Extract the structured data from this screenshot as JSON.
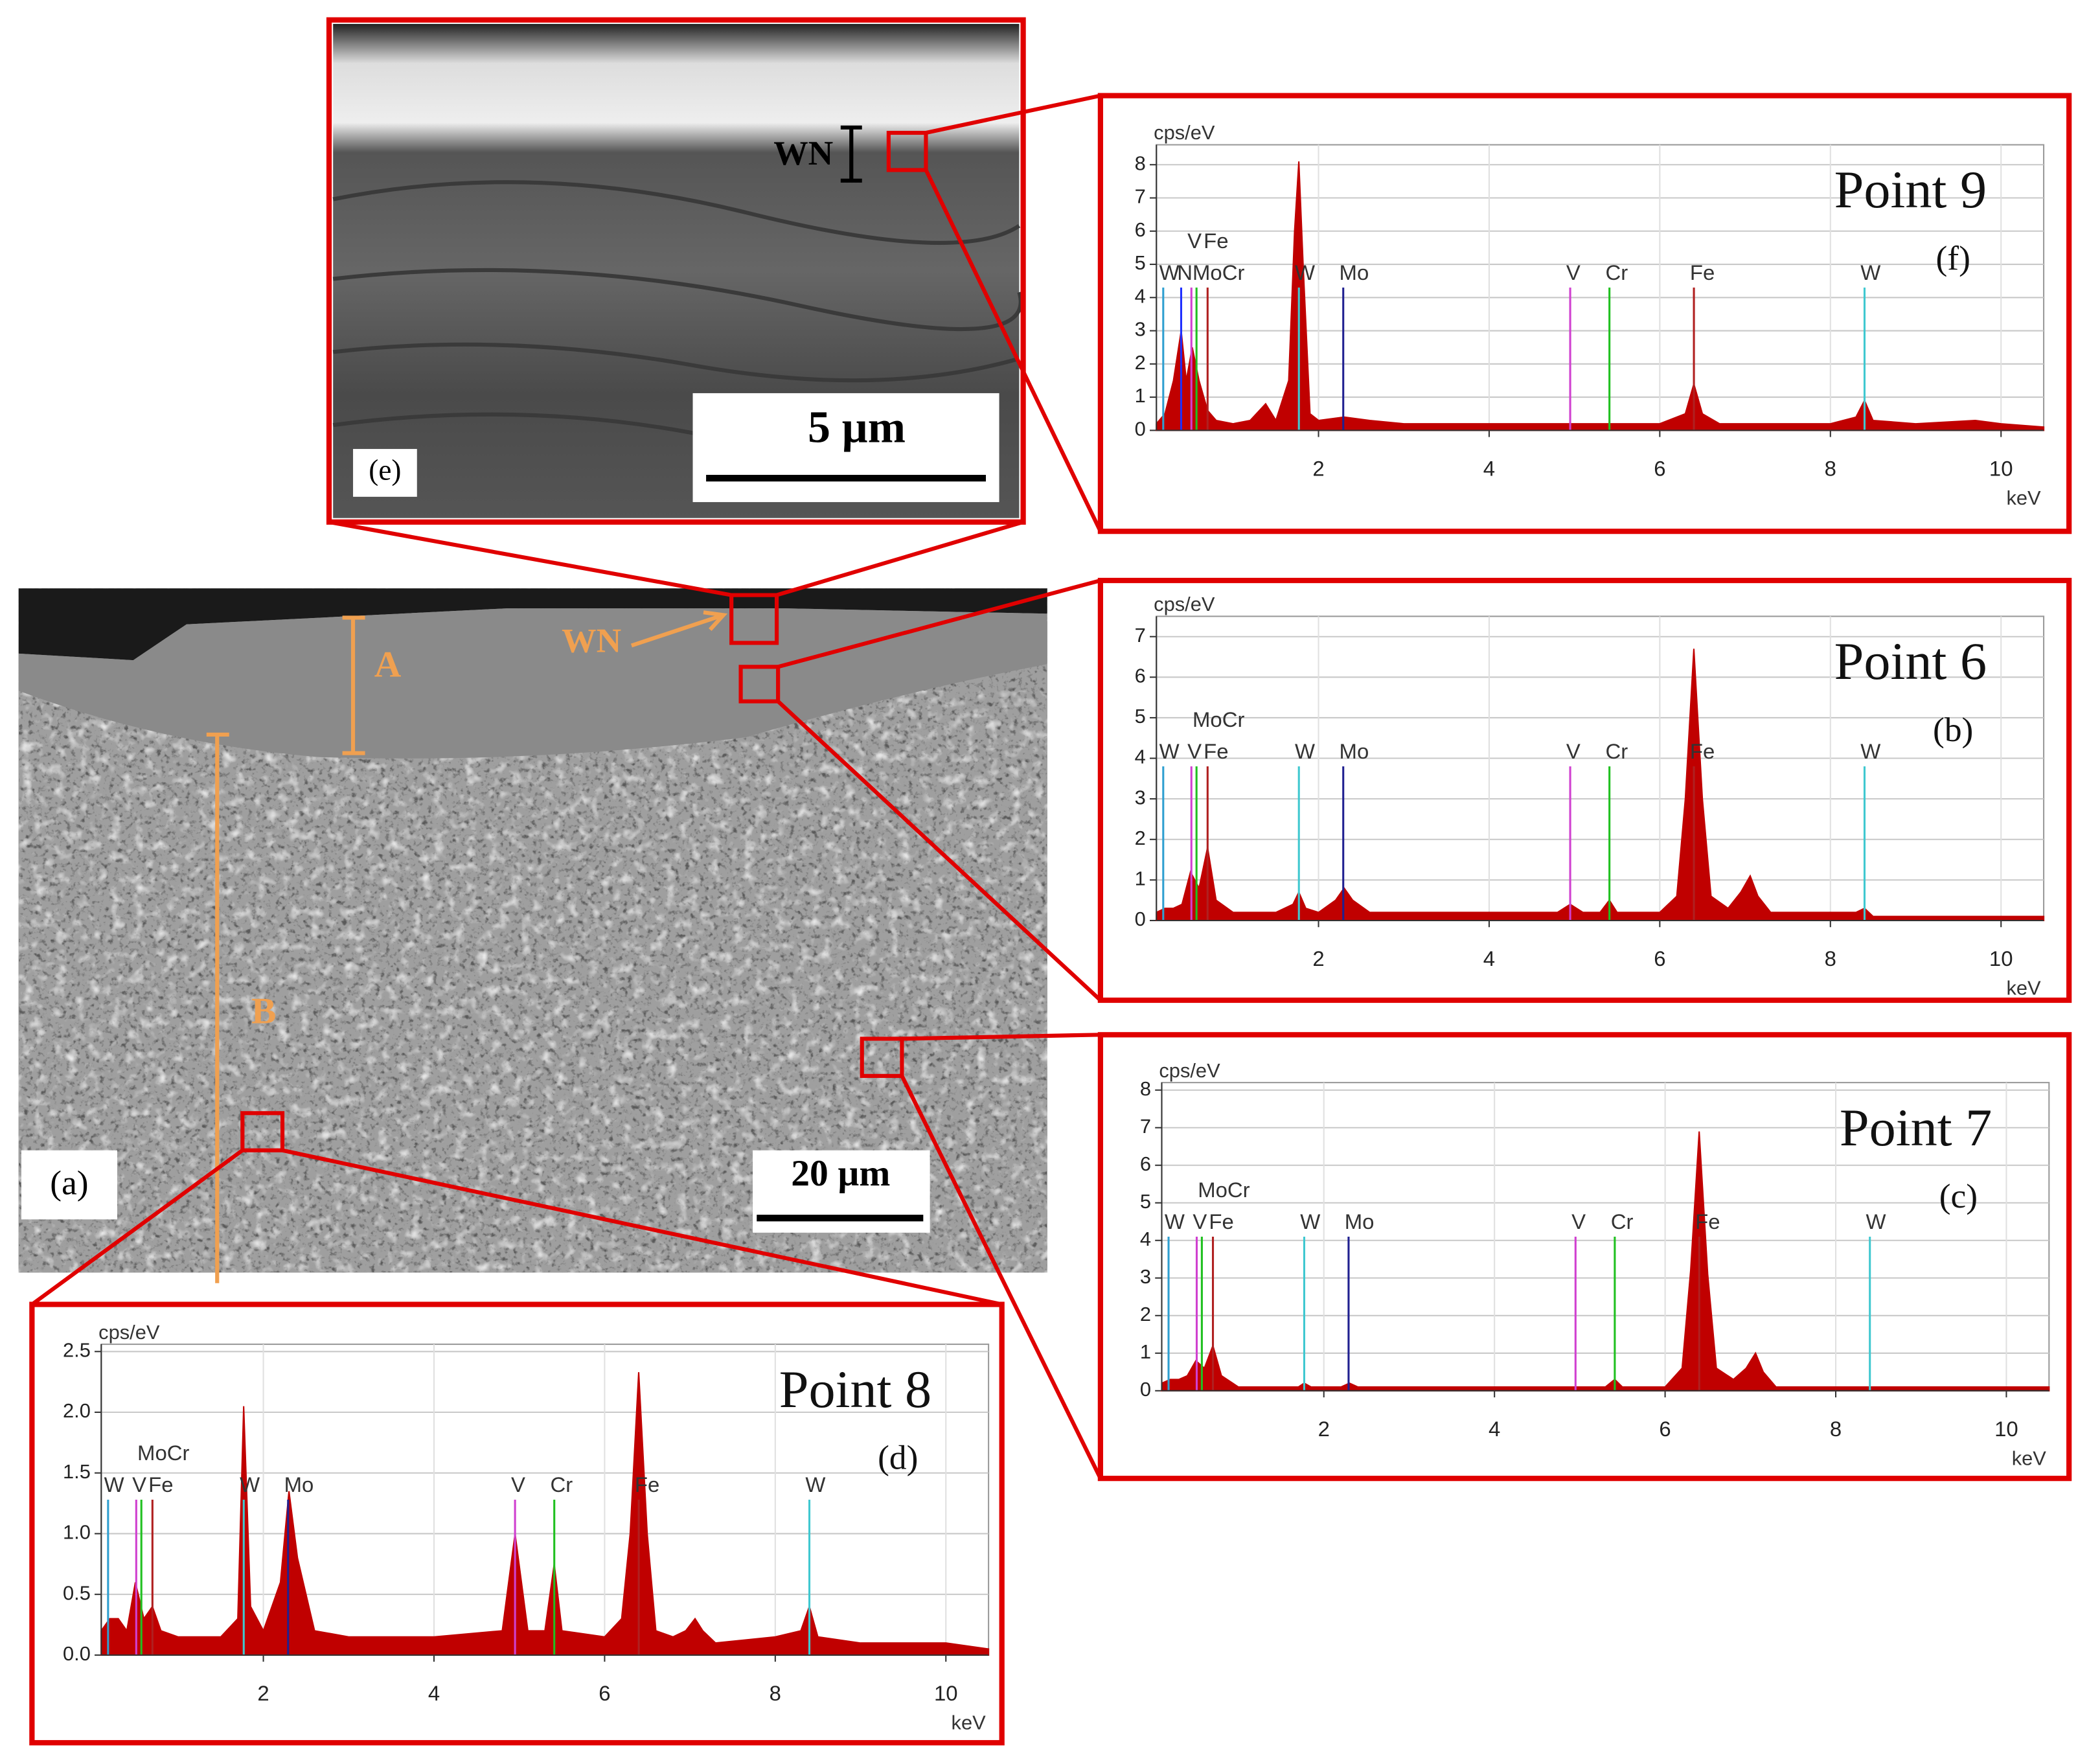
{
  "chart_data": [
    {
      "type": "area",
      "title": "Point 9",
      "panel": "(f)",
      "y_label": "cps/eV",
      "x_label": "keV",
      "color": "#c00000",
      "x": [
        0.1,
        0.2,
        0.3,
        0.39,
        0.45,
        0.52,
        0.6,
        0.7,
        0.8,
        1.0,
        1.2,
        1.38,
        1.5,
        1.65,
        1.72,
        1.77,
        1.82,
        1.9,
        2.0,
        2.3,
        2.6,
        3,
        4,
        5,
        5.4,
        6,
        6.3,
        6.4,
        6.5,
        6.7,
        7,
        7.5,
        8,
        8.3,
        8.4,
        8.5,
        9,
        9.7,
        10,
        10.5
      ],
      "values": [
        0.2,
        0.5,
        1.5,
        3,
        1.5,
        2.5,
        1.5,
        0.6,
        0.3,
        0.2,
        0.3,
        0.8,
        0.3,
        1.5,
        6,
        8.1,
        5,
        0.5,
        0.3,
        0.4,
        0.3,
        0.2,
        0.2,
        0.2,
        0.2,
        0.2,
        0.5,
        1.4,
        0.5,
        0.2,
        0.2,
        0.2,
        0.2,
        0.4,
        0.9,
        0.3,
        0.2,
        0.3,
        0.2,
        0.1
      ],
      "xlim": [
        0.1,
        10.5
      ],
      "xticks": [
        2,
        4,
        6,
        8,
        10
      ],
      "ylim": [
        0,
        8.6
      ],
      "yticks": [
        0,
        1,
        2,
        3,
        4,
        5,
        6,
        7,
        8
      ],
      "grid": true,
      "element_lines": [
        {
          "label": "W",
          "x": 0.18,
          "height": 4.3,
          "color": "#2f9fd0"
        },
        {
          "label": "N",
          "x": 0.39,
          "height": 4.3,
          "color": "#2030ff"
        },
        {
          "label": "V",
          "x": 0.51,
          "height": 4.3,
          "color": "#d040d0"
        },
        {
          "label": "MoCr",
          "x": 0.57,
          "height": 4.3,
          "color": "#20c020"
        },
        {
          "label": "Fe",
          "x": 0.7,
          "height": 4.3,
          "color": "#b02020"
        },
        {
          "label": "W",
          "x": 1.77,
          "height": 4.3,
          "color": "#40c8d0"
        },
        {
          "label": "Mo",
          "x": 2.29,
          "height": 4.3,
          "color": "#202090"
        },
        {
          "label": "V",
          "x": 4.95,
          "height": 4.3,
          "color": "#d040d0"
        },
        {
          "label": "Cr",
          "x": 5.41,
          "height": 4.3,
          "color": "#20c020"
        },
        {
          "label": "Fe",
          "x": 6.4,
          "height": 4.3,
          "color": "#b02020"
        },
        {
          "label": "W",
          "x": 8.4,
          "height": 4.3,
          "color": "#40c8d0"
        }
      ]
    },
    {
      "type": "area",
      "title": "Point 6",
      "panel": "(b)",
      "y_label": "cps/eV",
      "x_label": "keV",
      "color": "#c00000",
      "x": [
        0.1,
        0.2,
        0.3,
        0.4,
        0.5,
        0.6,
        0.7,
        0.8,
        1.0,
        1.5,
        1.7,
        1.77,
        1.85,
        2.0,
        2.2,
        2.3,
        2.4,
        2.6,
        3,
        4,
        4.8,
        4.95,
        5.1,
        5.3,
        5.41,
        5.5,
        6.0,
        6.2,
        6.3,
        6.4,
        6.5,
        6.6,
        6.8,
        6.95,
        7.06,
        7.15,
        7.3,
        8,
        8.3,
        8.4,
        8.5,
        9,
        10,
        10.5
      ],
      "values": [
        0.2,
        0.3,
        0.3,
        0.4,
        1.2,
        0.8,
        1.8,
        0.5,
        0.2,
        0.2,
        0.4,
        0.7,
        0.3,
        0.2,
        0.5,
        0.8,
        0.5,
        0.2,
        0.2,
        0.2,
        0.2,
        0.4,
        0.2,
        0.2,
        0.5,
        0.2,
        0.2,
        0.6,
        3,
        6.7,
        3,
        0.6,
        0.3,
        0.7,
        1.1,
        0.6,
        0.2,
        0.2,
        0.2,
        0.3,
        0.1,
        0.1,
        0.1,
        0.1
      ],
      "xlim": [
        0.1,
        10.5
      ],
      "xticks": [
        2,
        4,
        6,
        8,
        10
      ],
      "ylim": [
        0,
        7.5
      ],
      "yticks": [
        0,
        1,
        2,
        3,
        4,
        5,
        6,
        7
      ],
      "grid": true,
      "element_lines": [
        {
          "label": "W",
          "x": 0.18,
          "height": 3.8,
          "color": "#2f9fd0"
        },
        {
          "label": "V",
          "x": 0.51,
          "height": 3.8,
          "color": "#d040d0"
        },
        {
          "label": "MoCr",
          "x": 0.57,
          "height": 3.8,
          "color": "#20c020"
        },
        {
          "label": "Fe",
          "x": 0.7,
          "height": 3.8,
          "color": "#b02020"
        },
        {
          "label": "W",
          "x": 1.77,
          "height": 3.8,
          "color": "#40c8d0"
        },
        {
          "label": "Mo",
          "x": 2.29,
          "height": 3.8,
          "color": "#202090"
        },
        {
          "label": "V",
          "x": 4.95,
          "height": 3.8,
          "color": "#d040d0"
        },
        {
          "label": "Cr",
          "x": 5.41,
          "height": 3.8,
          "color": "#20c020"
        },
        {
          "label": "Fe",
          "x": 6.4,
          "height": 3.8,
          "color": "#b02020"
        },
        {
          "label": "W",
          "x": 8.4,
          "height": 3.8,
          "color": "#40c8d0"
        }
      ]
    },
    {
      "type": "area",
      "title": "Point 7",
      "panel": "(c)",
      "y_label": "cps/eV",
      "x_label": "keV",
      "color": "#c00000",
      "x": [
        0.1,
        0.2,
        0.3,
        0.4,
        0.5,
        0.6,
        0.7,
        0.8,
        1.0,
        1.5,
        1.7,
        1.77,
        1.85,
        2.0,
        2.2,
        2.3,
        2.4,
        2.6,
        3,
        4,
        4.8,
        4.95,
        5.1,
        5.3,
        5.41,
        5.5,
        6.0,
        6.2,
        6.3,
        6.4,
        6.5,
        6.6,
        6.8,
        6.95,
        7.06,
        7.15,
        7.3,
        8,
        8.3,
        8.4,
        8.5,
        9,
        10,
        10.5
      ],
      "values": [
        0.2,
        0.3,
        0.3,
        0.4,
        0.8,
        0.6,
        1.2,
        0.4,
        0.1,
        0.1,
        0.1,
        0.2,
        0.1,
        0.1,
        0.1,
        0.2,
        0.1,
        0.1,
        0.1,
        0.1,
        0.1,
        0.1,
        0.1,
        0.1,
        0.3,
        0.1,
        0.1,
        0.6,
        3.2,
        6.9,
        3.1,
        0.6,
        0.3,
        0.6,
        1.0,
        0.5,
        0.1,
        0.1,
        0.1,
        0.1,
        0.1,
        0.1,
        0.1,
        0.1
      ],
      "xlim": [
        0.1,
        10.5
      ],
      "xticks": [
        2,
        4,
        6,
        8,
        10
      ],
      "ylim": [
        0,
        8.2
      ],
      "yticks": [
        0,
        1,
        2,
        3,
        4,
        5,
        6,
        7,
        8
      ],
      "grid": true,
      "element_lines": [
        {
          "label": "W",
          "x": 0.18,
          "height": 4.1,
          "color": "#2f9fd0"
        },
        {
          "label": "V",
          "x": 0.51,
          "height": 4.1,
          "color": "#d040d0"
        },
        {
          "label": "MoCr",
          "x": 0.57,
          "height": 4.1,
          "color": "#20c020"
        },
        {
          "label": "Fe",
          "x": 0.7,
          "height": 4.1,
          "color": "#b02020"
        },
        {
          "label": "W",
          "x": 1.77,
          "height": 4.1,
          "color": "#40c8d0"
        },
        {
          "label": "Mo",
          "x": 2.29,
          "height": 4.1,
          "color": "#202090"
        },
        {
          "label": "V",
          "x": 4.95,
          "height": 4.1,
          "color": "#d040d0"
        },
        {
          "label": "Cr",
          "x": 5.41,
          "height": 4.1,
          "color": "#20c020"
        },
        {
          "label": "Fe",
          "x": 6.4,
          "height": 4.1,
          "color": "#b02020"
        },
        {
          "label": "W",
          "x": 8.4,
          "height": 4.1,
          "color": "#40c8d0"
        }
      ]
    },
    {
      "type": "area",
      "title": "Point 8",
      "panel": "(d)",
      "y_label": "cps/eV",
      "x_label": "keV",
      "color": "#c00000",
      "x": [
        0.1,
        0.2,
        0.3,
        0.4,
        0.5,
        0.6,
        0.7,
        0.8,
        1.0,
        1.5,
        1.7,
        1.77,
        1.85,
        2.0,
        2.2,
        2.3,
        2.4,
        2.6,
        3,
        4,
        4.8,
        4.95,
        5.1,
        5.3,
        5.41,
        5.5,
        6.0,
        6.2,
        6.3,
        6.4,
        6.5,
        6.6,
        6.8,
        6.95,
        7.06,
        7.15,
        7.3,
        8,
        8.3,
        8.4,
        8.5,
        9,
        10,
        10.5
      ],
      "values": [
        0.2,
        0.3,
        0.3,
        0.2,
        0.6,
        0.3,
        0.4,
        0.2,
        0.15,
        0.15,
        0.3,
        2.05,
        0.4,
        0.2,
        0.6,
        1.35,
        0.8,
        0.2,
        0.15,
        0.15,
        0.2,
        1.0,
        0.2,
        0.2,
        0.75,
        0.2,
        0.15,
        0.3,
        1.0,
        2.33,
        1.0,
        0.2,
        0.15,
        0.2,
        0.3,
        0.2,
        0.1,
        0.15,
        0.2,
        0.4,
        0.15,
        0.1,
        0.1,
        0.05
      ],
      "xlim": [
        0.1,
        10.5
      ],
      "xticks": [
        2,
        4,
        6,
        8,
        10
      ],
      "ylim": [
        0,
        2.56
      ],
      "yticks": [
        {
          "value": 0,
          "label": "0.0"
        },
        0.5,
        {
          "value": 1,
          "label": "1.0"
        },
        1.5,
        {
          "value": 2,
          "label": "2.0"
        },
        2.5
      ],
      "grid": true,
      "element_lines": [
        {
          "label": "W",
          "x": 0.18,
          "height": 1.28,
          "color": "#2f9fd0"
        },
        {
          "label": "V",
          "x": 0.51,
          "height": 1.28,
          "color": "#d040d0"
        },
        {
          "label": "MoCr",
          "x": 0.57,
          "height": 1.28,
          "color": "#20c020"
        },
        {
          "label": "Fe",
          "x": 0.7,
          "height": 1.28,
          "color": "#b02020"
        },
        {
          "label": "W",
          "x": 1.77,
          "height": 1.28,
          "color": "#40c8d0"
        },
        {
          "label": "Mo",
          "x": 2.29,
          "height": 1.28,
          "color": "#202090"
        },
        {
          "label": "V",
          "x": 4.95,
          "height": 1.28,
          "color": "#d040d0"
        },
        {
          "label": "Cr",
          "x": 5.41,
          "height": 1.28,
          "color": "#20c020"
        },
        {
          "label": "Fe",
          "x": 6.4,
          "height": 1.28,
          "color": "#b02020"
        },
        {
          "label": "W",
          "x": 8.4,
          "height": 1.28,
          "color": "#40c8d0"
        }
      ]
    }
  ],
  "images": {
    "e": {
      "panel": "(e)",
      "scale": "5 µm",
      "layer": "WN"
    },
    "a": {
      "panel": "(a)",
      "scale": "20 µm",
      "zone_a": "A",
      "zone_b": "B",
      "layer": "WN"
    }
  }
}
